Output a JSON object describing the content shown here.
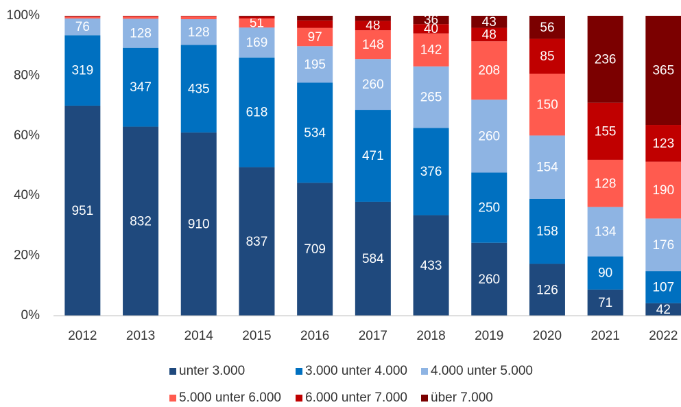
{
  "chart_data": {
    "type": "stacked_bar_percent",
    "categories": [
      "2012",
      "2013",
      "2014",
      "2015",
      "2016",
      "2017",
      "2018",
      "2019",
      "2020",
      "2021",
      "2022"
    ],
    "series": [
      {
        "name": "unter 3.000",
        "color": "#1f497d",
        "values": [
          951,
          832,
          910,
          837,
          709,
          584,
          433,
          260,
          126,
          71,
          42
        ]
      },
      {
        "name": "3.000 unter 4.000",
        "color": "#0070c0",
        "values": [
          319,
          347,
          435,
          618,
          534,
          471,
          376,
          250,
          158,
          90,
          107
        ]
      },
      {
        "name": "4.000 unter 5.000",
        "color": "#8eb4e3",
        "values": [
          76,
          128,
          128,
          169,
          195,
          260,
          265,
          260,
          154,
          134,
          176
        ]
      },
      {
        "name": "5.000 unter 6.000",
        "color": "#ff5b4f",
        "values": [
          8,
          10,
          14,
          51,
          97,
          148,
          142,
          208,
          150,
          128,
          190
        ]
      },
      {
        "name": "6.000 unter 7.000",
        "color": "#c00000",
        "values": [
          2,
          2,
          2,
          10,
          40,
          48,
          40,
          48,
          85,
          155,
          123
        ]
      },
      {
        "name": "über 7.000",
        "color": "#7b0000",
        "values": [
          2,
          1,
          1,
          5,
          25,
          26,
          36,
          43,
          56,
          236,
          365
        ]
      }
    ],
    "ylim": [
      0,
      100
    ],
    "yticks": [
      {
        "value": 0,
        "label": "0%"
      },
      {
        "value": 20,
        "label": "20%"
      },
      {
        "value": 40,
        "label": "40%"
      },
      {
        "value": 60,
        "label": "60%"
      },
      {
        "value": 80,
        "label": "80%"
      },
      {
        "value": 100,
        "label": "100%"
      }
    ],
    "grid": false
  }
}
